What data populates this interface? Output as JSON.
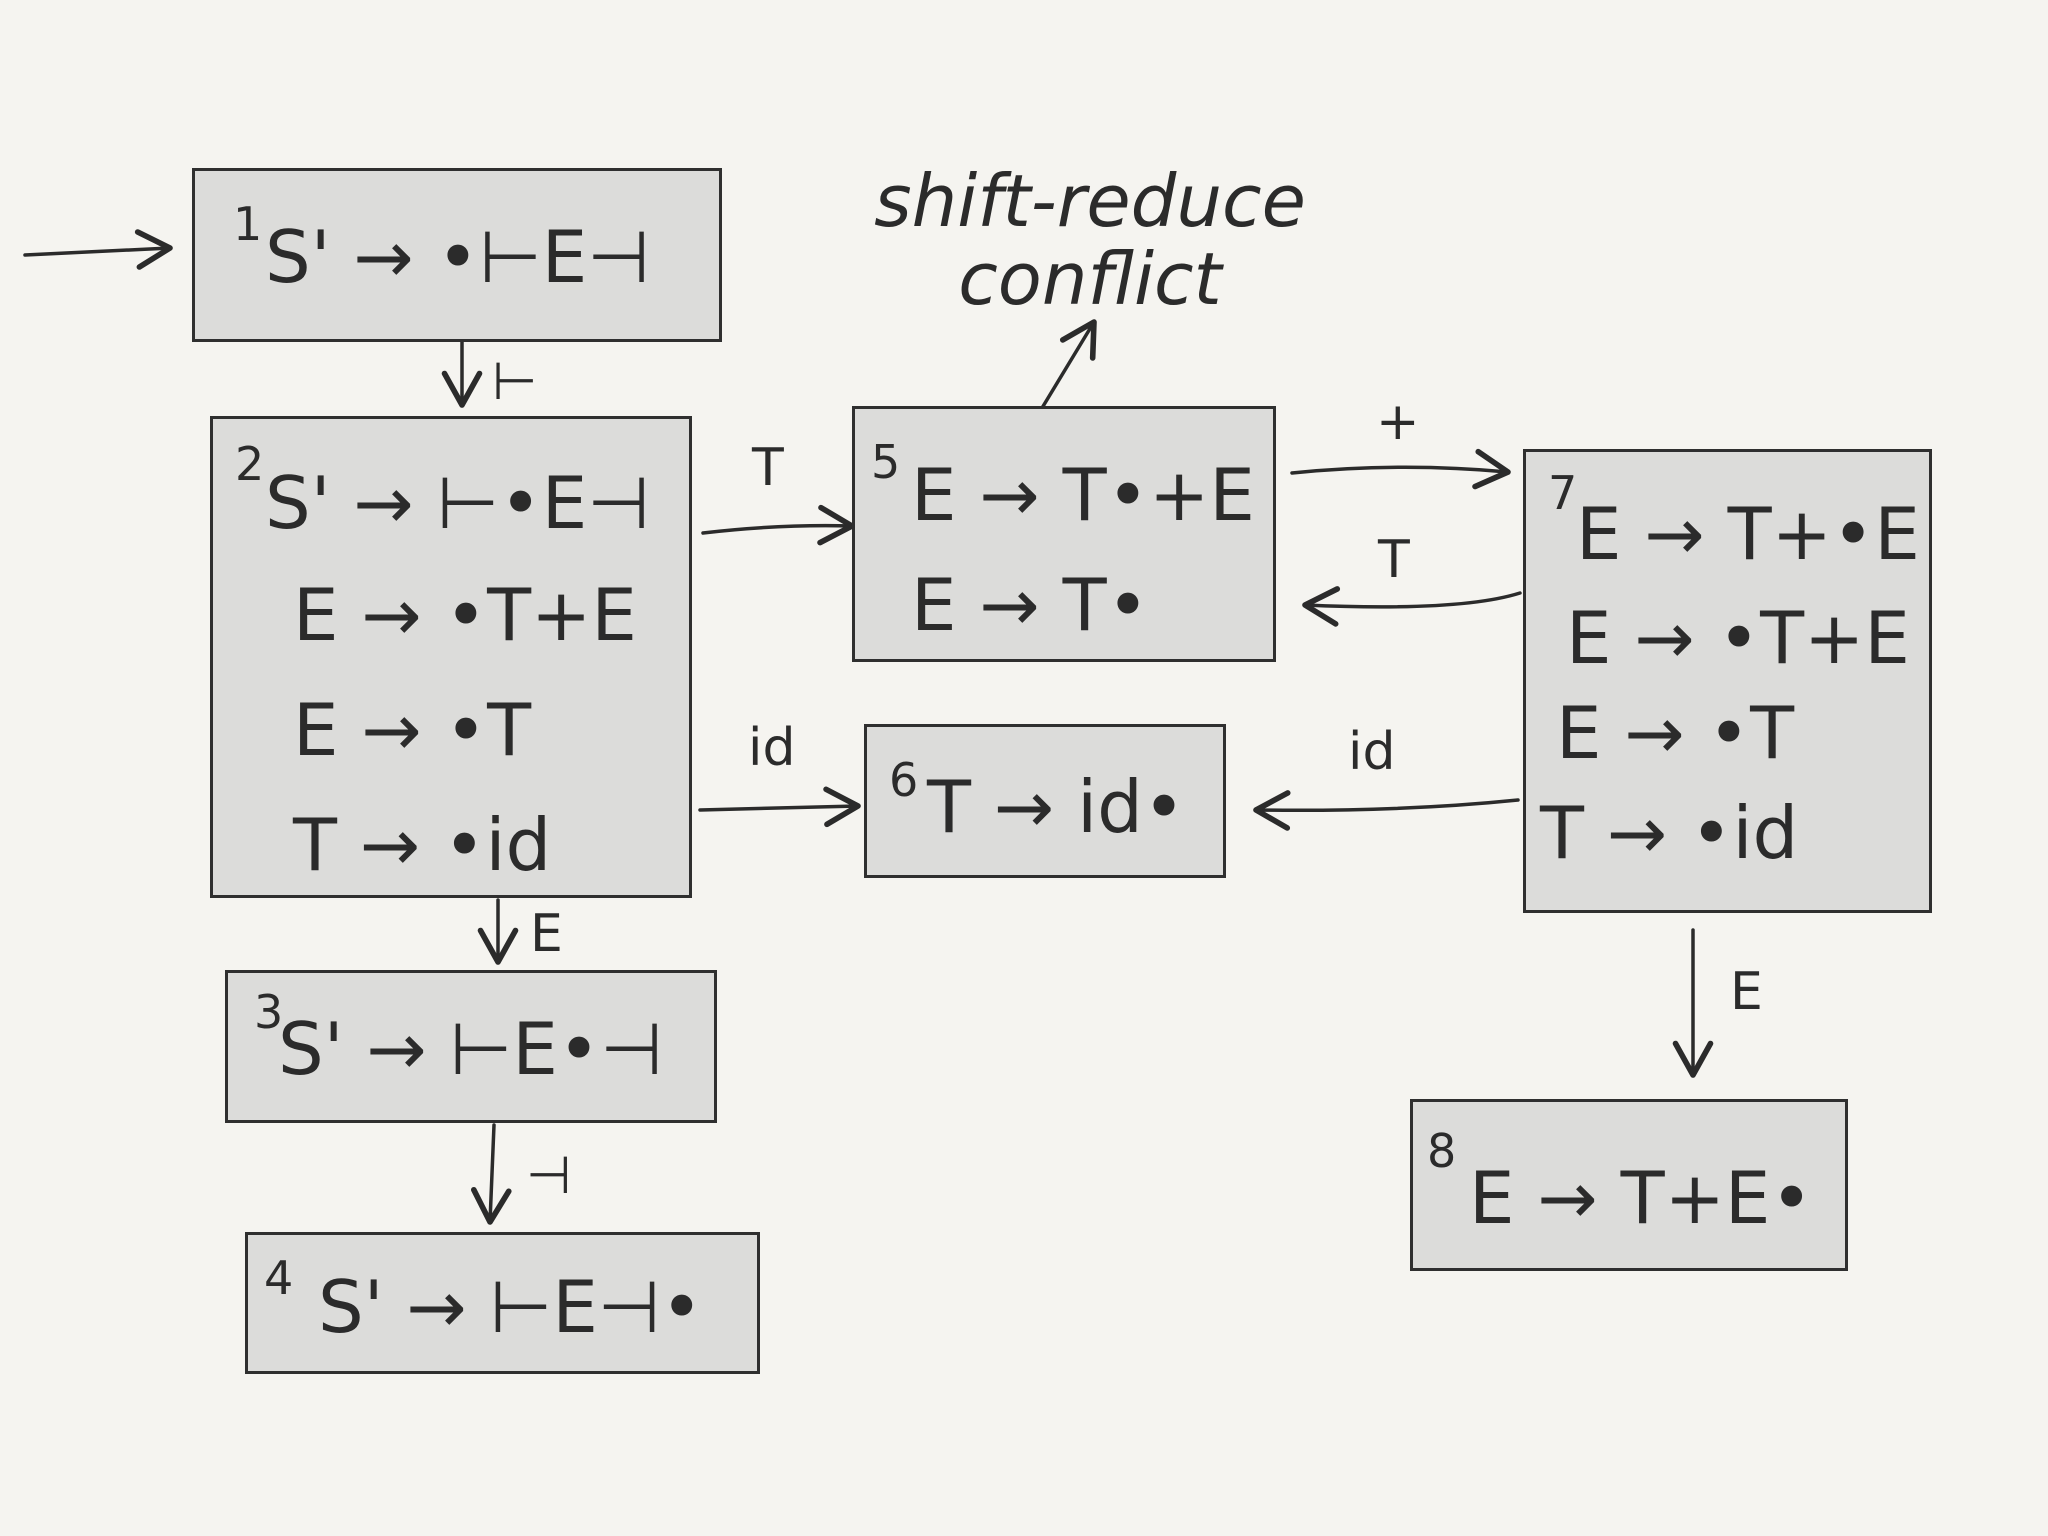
{
  "states": [
    {
      "id": "1",
      "items": [
        "S' → •⊢E⊣"
      ]
    },
    {
      "id": "2",
      "items": [
        "S' → ⊢•E⊣",
        "E → •T+E",
        "E → •T",
        "T → •id"
      ]
    },
    {
      "id": "3",
      "items": [
        "S' → ⊢E•⊣"
      ]
    },
    {
      "id": "4",
      "items": [
        "S' → ⊢E⊣•"
      ]
    },
    {
      "id": "5",
      "items": [
        "E → T•+E",
        "E → T•"
      ]
    },
    {
      "id": "6",
      "items": [
        "T → id•"
      ]
    },
    {
      "id": "7",
      "items": [
        "E → T+•E",
        "E → •T+E",
        "E → •T",
        "T → •id"
      ]
    },
    {
      "id": "8",
      "items": [
        "E → T+E•"
      ]
    }
  ],
  "edges": [
    {
      "from": "start",
      "to": "1",
      "label": ""
    },
    {
      "from": "1",
      "to": "2",
      "label": "⊢"
    },
    {
      "from": "2",
      "to": "3",
      "label": "E"
    },
    {
      "from": "3",
      "to": "4",
      "label": "⊣"
    },
    {
      "from": "2",
      "to": "5",
      "label": "T"
    },
    {
      "from": "2",
      "to": "6",
      "label": "id"
    },
    {
      "from": "5",
      "to": "7",
      "label": "+"
    },
    {
      "from": "7",
      "to": "5",
      "label": "T"
    },
    {
      "from": "7",
      "to": "6",
      "label": "id"
    },
    {
      "from": "7",
      "to": "8",
      "label": "E"
    }
  ],
  "annotation": {
    "line1": "shift-reduce",
    "line2": "conflict"
  },
  "colors": {
    "background": "#f5f4f0",
    "state_fill": "#dcdcda",
    "ink": "#2b2b2b"
  }
}
